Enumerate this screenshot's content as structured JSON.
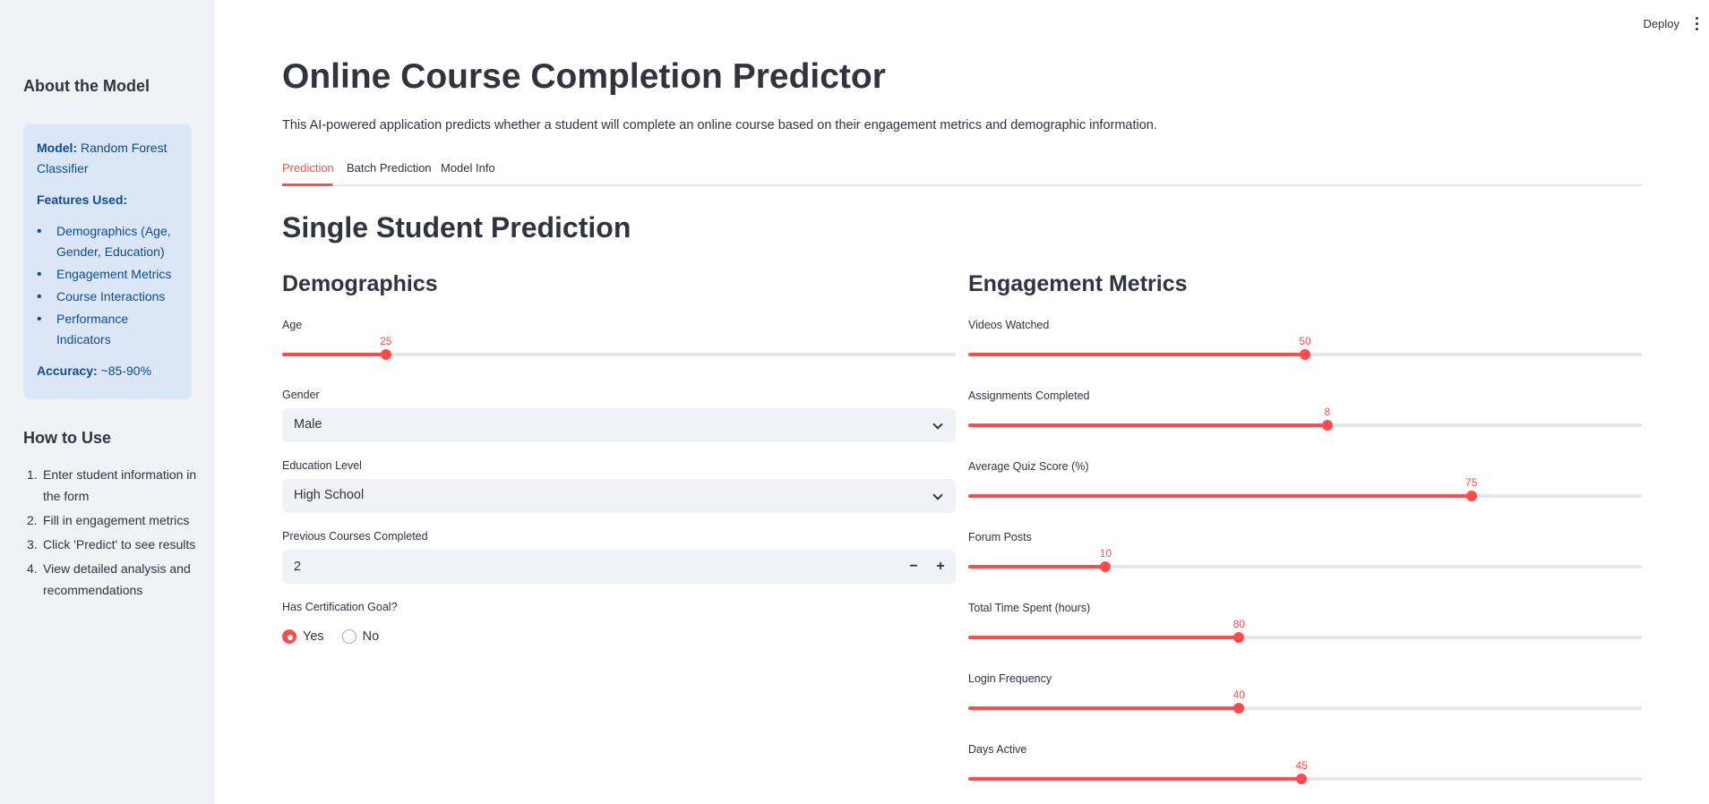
{
  "topbar": {
    "deploy_label": "Deploy"
  },
  "sidebar": {
    "about_heading": "About the Model",
    "model_label": "Model:",
    "model_value": "Random Forest Classifier",
    "features_label": "Features Used:",
    "features": [
      "Demographics (Age, Gender, Education)",
      "Engagement Metrics",
      "Course Interactions",
      "Performance Indicators"
    ],
    "accuracy_label": "Accuracy:",
    "accuracy_value": "~85-90%",
    "howto_heading": "How to Use",
    "howto_steps": [
      "Enter student information in the form",
      "Fill in engagement metrics",
      "Click 'Predict' to see results",
      "View detailed analysis and recommendations"
    ]
  },
  "header": {
    "title": "Online Course Completion Predictor",
    "description": "This AI-powered application predicts whether a student will complete an online course based on their engagement metrics and demographic information."
  },
  "tabs": [
    {
      "label": "Prediction",
      "active": true
    },
    {
      "label": "Batch Prediction",
      "active": false
    },
    {
      "label": "Model Info",
      "active": false
    }
  ],
  "section_title": "Single Student Prediction",
  "demographics": {
    "heading": "Demographics",
    "age": {
      "label": "Age",
      "value": 25,
      "fraction": 0.154
    },
    "gender": {
      "label": "Gender",
      "value": "Male"
    },
    "education": {
      "label": "Education Level",
      "value": "High School"
    },
    "previous_courses": {
      "label": "Previous Courses Completed",
      "value": "2",
      "minus": "−",
      "plus": "+"
    },
    "certification": {
      "label": "Has Certification Goal?",
      "options": [
        "Yes",
        "No"
      ],
      "selected": "Yes"
    }
  },
  "engagement": {
    "heading": "Engagement Metrics",
    "sliders": [
      {
        "label": "Videos Watched",
        "value": 50,
        "fraction": 0.5
      },
      {
        "label": "Assignments Completed",
        "value": 8,
        "fraction": 0.533
      },
      {
        "label": "Average Quiz Score (%)",
        "value": 75,
        "fraction": 0.747
      },
      {
        "label": "Forum Posts",
        "value": 10,
        "fraction": 0.204
      },
      {
        "label": "Total Time Spent (hours)",
        "value": 80,
        "fraction": 0.402
      },
      {
        "label": "Login Frequency",
        "value": 40,
        "fraction": 0.402
      },
      {
        "label": "Days Active",
        "value": 45,
        "fraction": 0.495
      }
    ]
  },
  "colors": {
    "accent": "#ff4b4b",
    "sidebar_bg": "#f0f2f6",
    "info_bg": "#dbe7f6",
    "info_text": "#0e4b8f",
    "text": "#31333f"
  }
}
